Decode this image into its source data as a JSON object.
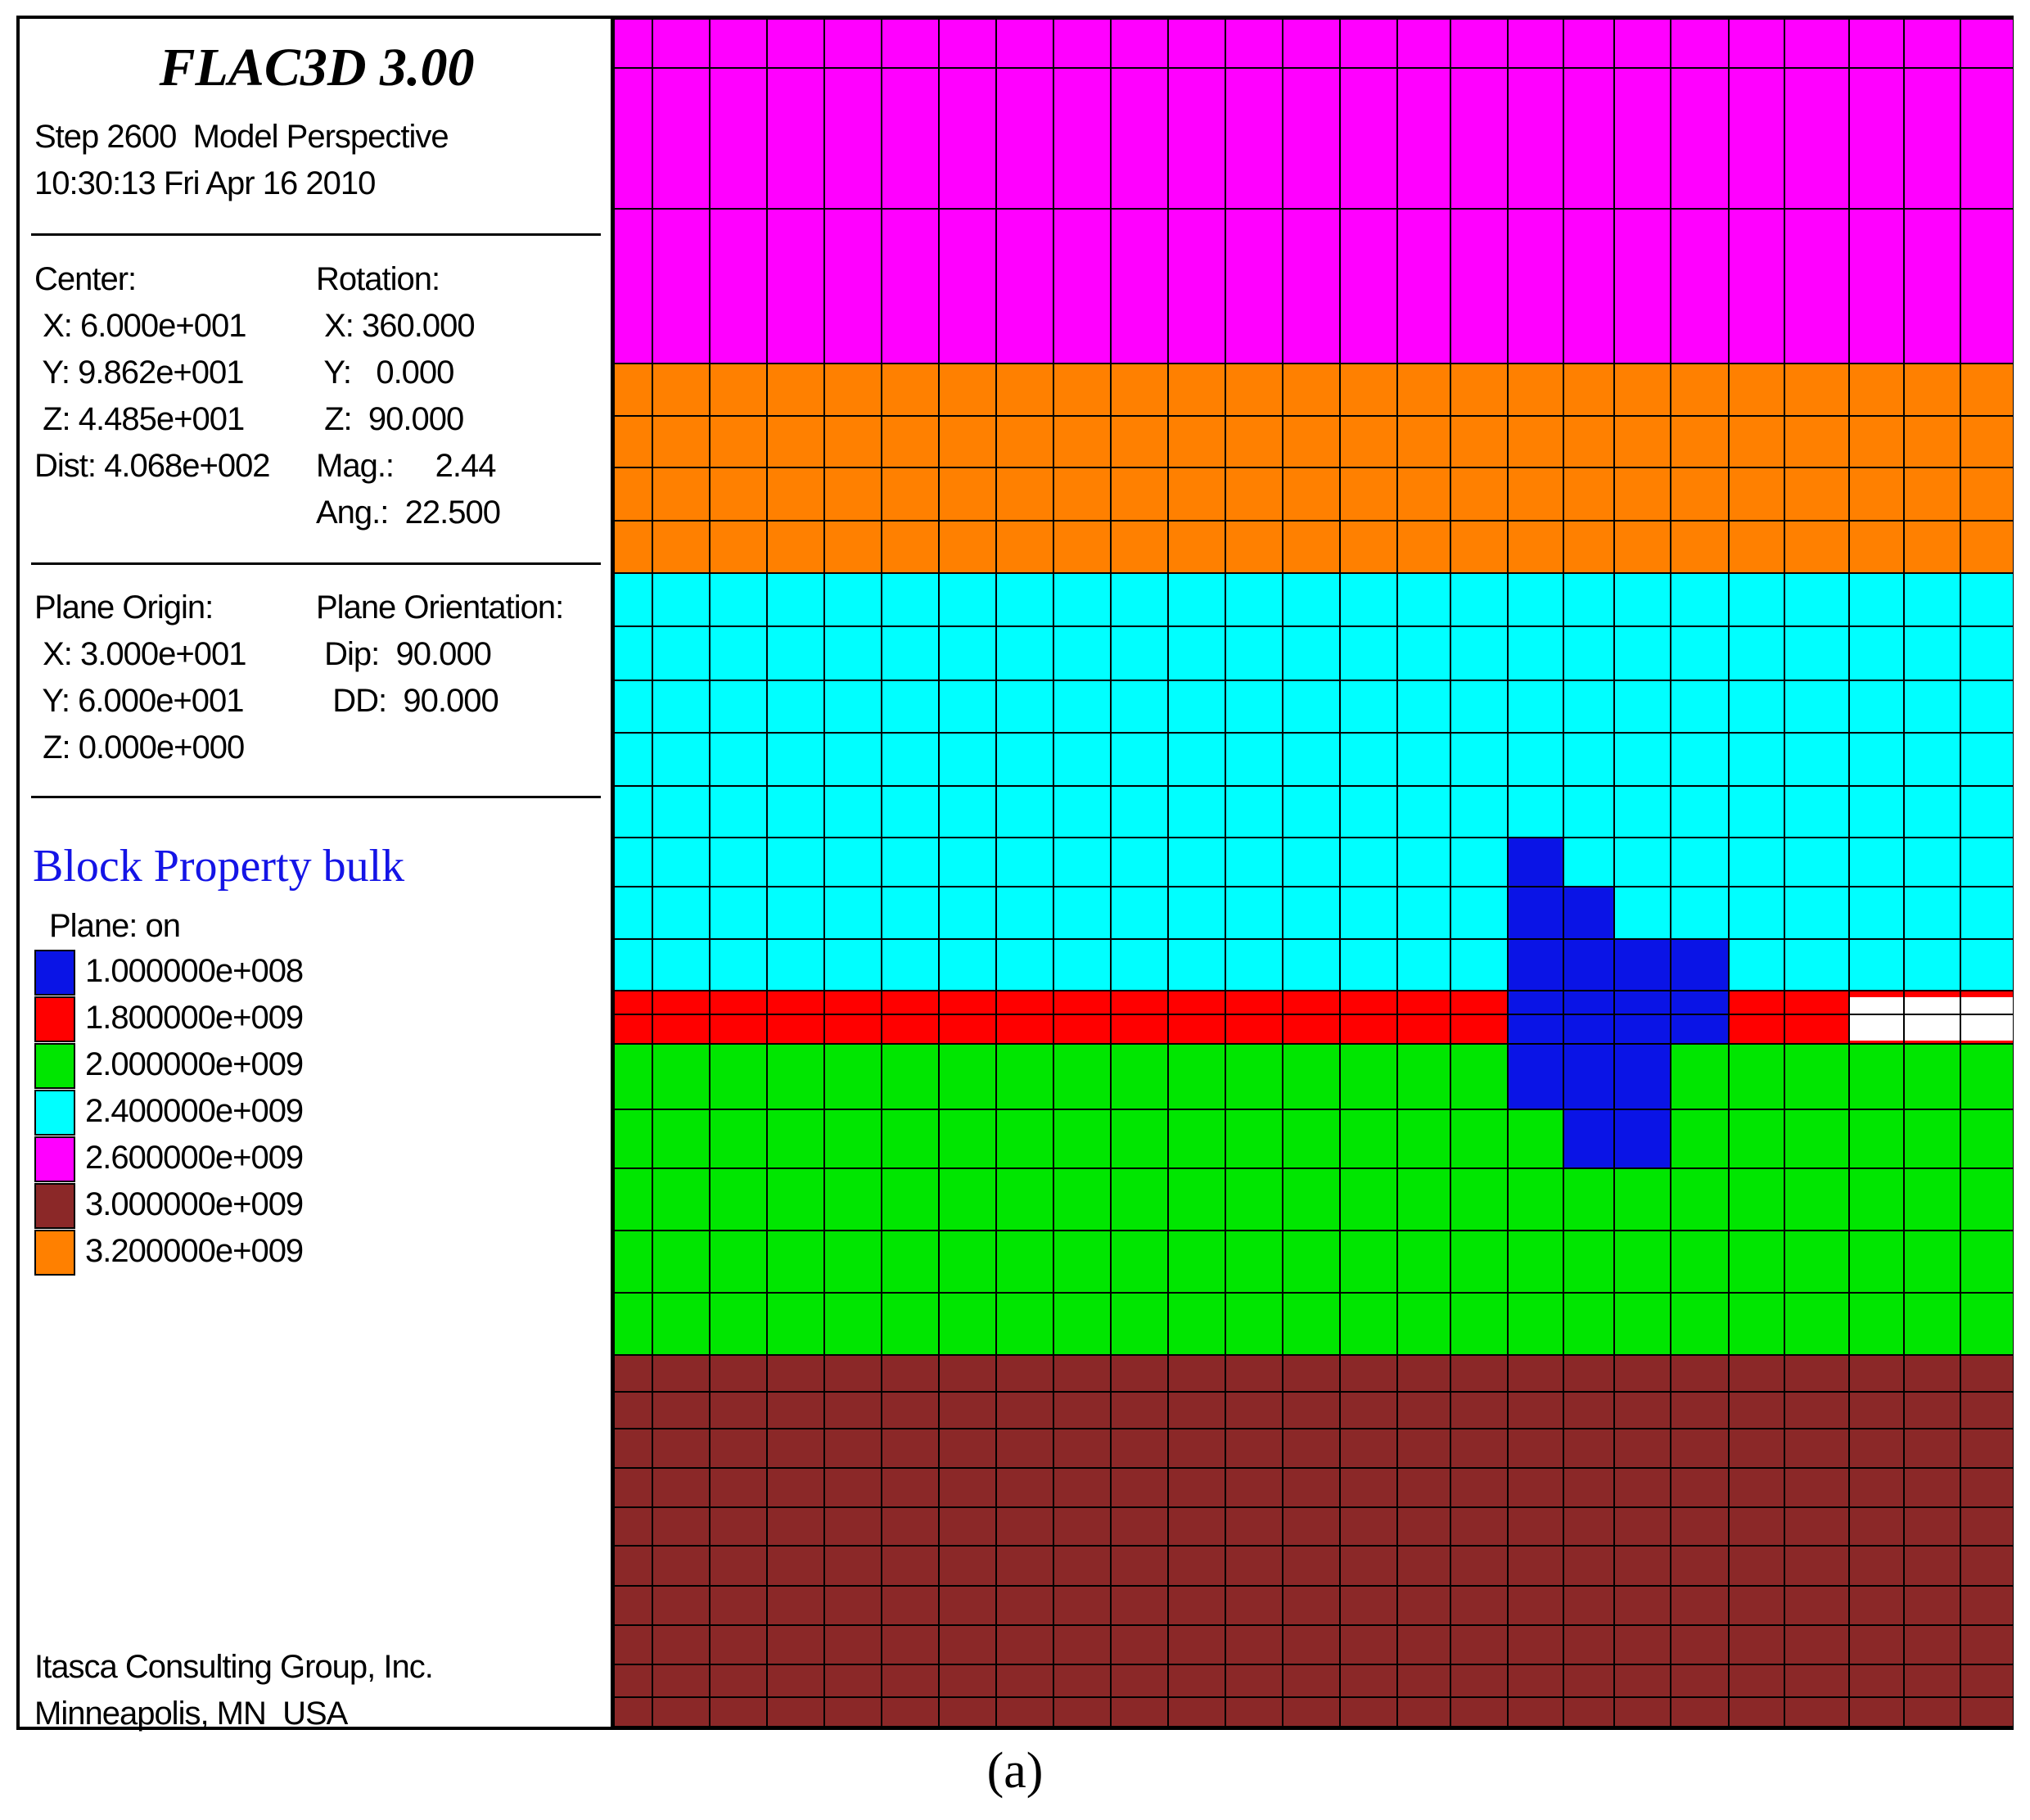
{
  "window": {
    "app_title": "FLAC3D 3.00",
    "step_line": "Step 2600  Model Perspective",
    "timestamp": "10:30:13 Fri Apr 16 2010"
  },
  "view": {
    "center_label": "Center:",
    "center_x": " X: 6.000e+001",
    "center_y": " Y: 9.862e+001",
    "center_z": " Z: 4.485e+001",
    "dist": "Dist: 4.068e+002",
    "rotation_label": "Rotation:",
    "rot_x": " X: 360.000",
    "rot_y": " Y:   0.000",
    "rot_z": " Z:  90.000",
    "mag": "Mag.:     2.44",
    "ang": "Ang.:  22.500"
  },
  "plane": {
    "origin_label": "Plane Origin:",
    "origin_x": " X: 3.000e+001",
    "origin_y": " Y: 6.000e+001",
    "origin_z": " Z: 0.000e+000",
    "orientation_label": "Plane Orientation:",
    "dip": " Dip:  90.000",
    "dd": "  DD:  90.000"
  },
  "legend": {
    "title": "Block Property bulk",
    "plane_state": "Plane: on",
    "entries": [
      {
        "value": "1.000000e+008",
        "color": "#0a14e6"
      },
      {
        "value": "1.800000e+009",
        "color": "#ff0000"
      },
      {
        "value": "2.000000e+009",
        "color": "#00e600"
      },
      {
        "value": "2.400000e+009",
        "color": "#00ffff"
      },
      {
        "value": "2.600000e+009",
        "color": "#ff00ff"
      },
      {
        "value": "3.000000e+009",
        "color": "#8b2828"
      },
      {
        "value": "3.200000e+009",
        "color": "#ff8000"
      }
    ]
  },
  "footer": {
    "company": "Itasca Consulting Group, Inc.",
    "location": "Minneapolis, MN  USA"
  },
  "caption": "(a)"
}
